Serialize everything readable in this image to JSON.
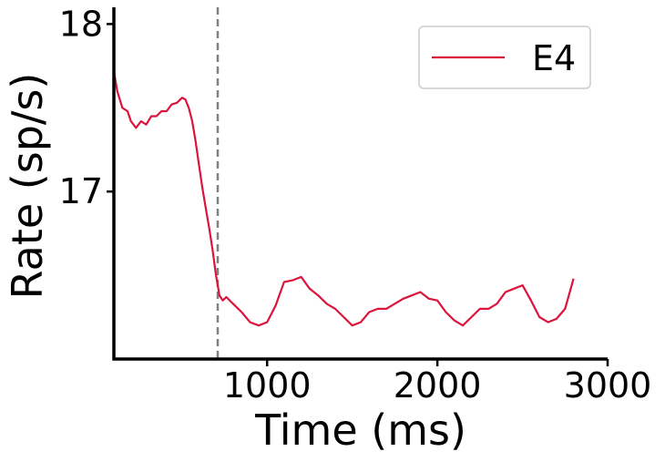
{
  "chart_data": {
    "type": "line",
    "xlabel": "Time (ms)",
    "ylabel": "Rate (sp/s)",
    "xlim": [
      100,
      3000
    ],
    "ylim": [
      16.0,
      18.1
    ],
    "xticks": [
      1000,
      2000,
      3000
    ],
    "xtick_labels": [
      "1000",
      "2000",
      "3000"
    ],
    "yticks": [
      17,
      18
    ],
    "ytick_labels": [
      "17",
      "18"
    ],
    "grid": false,
    "legend_position": "top-right",
    "vline": {
      "x": 710,
      "style": "dashed",
      "color": "#808080"
    },
    "series": [
      {
        "name": "E4",
        "color": "#dc143c",
        "x": [
          100,
          120,
          150,
          180,
          200,
          230,
          260,
          290,
          320,
          350,
          380,
          410,
          440,
          470,
          500,
          520,
          540,
          560,
          580,
          600,
          620,
          640,
          660,
          680,
          700,
          720,
          740,
          760,
          800,
          850,
          900,
          950,
          1000,
          1050,
          1100,
          1150,
          1200,
          1250,
          1300,
          1350,
          1400,
          1450,
          1500,
          1550,
          1600,
          1650,
          1700,
          1750,
          1800,
          1850,
          1900,
          1950,
          2000,
          2050,
          2100,
          2150,
          2200,
          2250,
          2300,
          2350,
          2400,
          2450,
          2500,
          2550,
          2600,
          2650,
          2700,
          2750,
          2800
        ],
        "values": [
          17.72,
          17.6,
          17.5,
          17.48,
          17.42,
          17.38,
          17.42,
          17.4,
          17.45,
          17.45,
          17.48,
          17.48,
          17.52,
          17.53,
          17.56,
          17.55,
          17.5,
          17.42,
          17.3,
          17.16,
          17.02,
          16.9,
          16.78,
          16.65,
          16.5,
          16.38,
          16.35,
          16.37,
          16.33,
          16.28,
          16.22,
          16.2,
          16.22,
          16.32,
          16.46,
          16.47,
          16.49,
          16.42,
          16.38,
          16.33,
          16.3,
          16.25,
          16.2,
          16.22,
          16.28,
          16.3,
          16.3,
          16.33,
          16.36,
          16.38,
          16.4,
          16.36,
          16.35,
          16.28,
          16.23,
          16.2,
          16.25,
          16.3,
          16.3,
          16.33,
          16.4,
          16.42,
          16.44,
          16.35,
          16.25,
          16.22,
          16.24,
          16.3,
          16.48
        ]
      }
    ]
  }
}
